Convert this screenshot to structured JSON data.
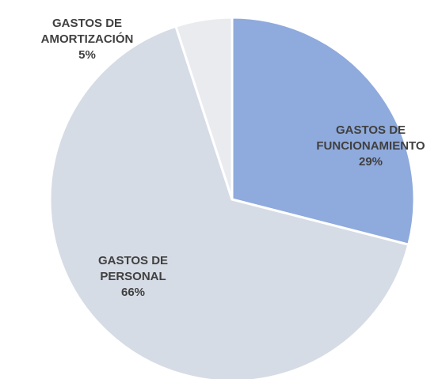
{
  "chart_data": {
    "type": "pie",
    "categories": [
      "GASTOS DE FUNCIONAMIENTO",
      "GASTOS DE PERSONAL",
      "GASTOS DE AMORTIZACIÓN"
    ],
    "values": [
      29,
      66,
      5
    ],
    "value_labels": [
      "29%",
      "66%",
      "5%"
    ],
    "colors": [
      "#8faadc",
      "#d6dce5",
      "#e9ebef"
    ]
  }
}
